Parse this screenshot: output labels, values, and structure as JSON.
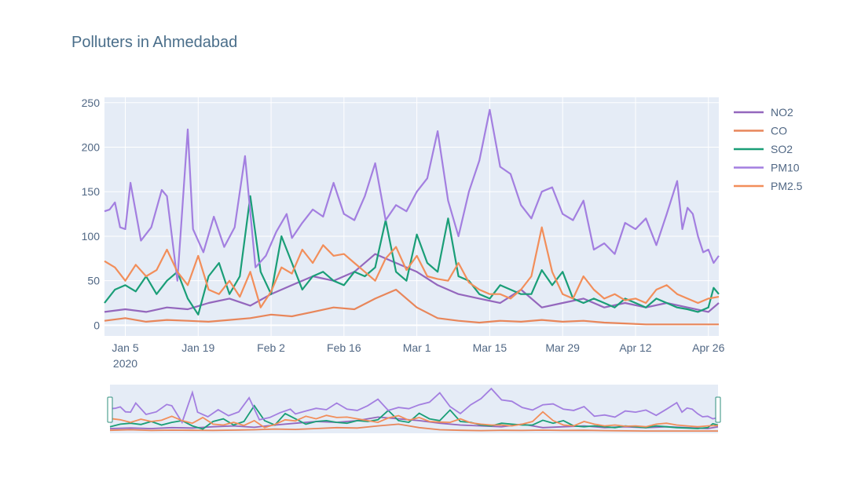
{
  "chart_data": {
    "type": "line",
    "title": "Polluters in Ahmedabad",
    "xlabel": "",
    "ylabel": "",
    "x_start": "2020-01-01",
    "x_end": "2020-04-28",
    "ylim": [
      -12,
      256
    ],
    "y_ticks": [
      "0",
      "50",
      "100",
      "150",
      "200",
      "250"
    ],
    "x_ticks": [
      {
        "label": "Jan 5",
        "sub": "2020",
        "date": "2020-01-05"
      },
      {
        "label": "Jan 19",
        "date": "2020-01-19"
      },
      {
        "label": "Feb 2",
        "date": "2020-02-02"
      },
      {
        "label": "Feb 16",
        "date": "2020-02-16"
      },
      {
        "label": "Mar 1",
        "date": "2020-03-01"
      },
      {
        "label": "Mar 15",
        "date": "2020-03-15"
      },
      {
        "label": "Mar 29",
        "date": "2020-03-29"
      },
      {
        "label": "Apr 12",
        "date": "2020-04-12"
      },
      {
        "label": "Apr 26",
        "date": "2020-04-26"
      }
    ],
    "grid": true,
    "legend_position": "right",
    "has_range_slider": true,
    "series": [
      {
        "name": "NO2",
        "color": "#9467bd",
        "points": [
          [
            "2020-01-01",
            15
          ],
          [
            "2020-01-05",
            18
          ],
          [
            "2020-01-09",
            15
          ],
          [
            "2020-01-13",
            20
          ],
          [
            "2020-01-17",
            18
          ],
          [
            "2020-01-21",
            25
          ],
          [
            "2020-01-25",
            30
          ],
          [
            "2020-01-29",
            22
          ],
          [
            "2020-02-02",
            35
          ],
          [
            "2020-02-06",
            45
          ],
          [
            "2020-02-10",
            55
          ],
          [
            "2020-02-14",
            50
          ],
          [
            "2020-02-18",
            60
          ],
          [
            "2020-02-22",
            80
          ],
          [
            "2020-02-26",
            70
          ],
          [
            "2020-03-01",
            60
          ],
          [
            "2020-03-05",
            45
          ],
          [
            "2020-03-09",
            35
          ],
          [
            "2020-03-13",
            30
          ],
          [
            "2020-03-17",
            25
          ],
          [
            "2020-03-21",
            40
          ],
          [
            "2020-03-25",
            20
          ],
          [
            "2020-03-29",
            25
          ],
          [
            "2020-04-02",
            30
          ],
          [
            "2020-04-06",
            20
          ],
          [
            "2020-04-10",
            25
          ],
          [
            "2020-04-14",
            20
          ],
          [
            "2020-04-18",
            25
          ],
          [
            "2020-04-22",
            20
          ],
          [
            "2020-04-26",
            15
          ],
          [
            "2020-04-28",
            25
          ]
        ]
      },
      {
        "name": "CO",
        "color": "#e8865a",
        "points": [
          [
            "2020-01-01",
            5
          ],
          [
            "2020-01-05",
            8
          ],
          [
            "2020-01-09",
            4
          ],
          [
            "2020-01-13",
            6
          ],
          [
            "2020-01-17",
            5
          ],
          [
            "2020-01-21",
            4
          ],
          [
            "2020-01-25",
            6
          ],
          [
            "2020-01-29",
            8
          ],
          [
            "2020-02-02",
            12
          ],
          [
            "2020-02-06",
            10
          ],
          [
            "2020-02-10",
            15
          ],
          [
            "2020-02-14",
            20
          ],
          [
            "2020-02-18",
            18
          ],
          [
            "2020-02-22",
            30
          ],
          [
            "2020-02-26",
            40
          ],
          [
            "2020-03-01",
            20
          ],
          [
            "2020-03-05",
            8
          ],
          [
            "2020-03-09",
            5
          ],
          [
            "2020-03-13",
            3
          ],
          [
            "2020-03-17",
            5
          ],
          [
            "2020-03-21",
            4
          ],
          [
            "2020-03-25",
            6
          ],
          [
            "2020-03-29",
            4
          ],
          [
            "2020-04-02",
            5
          ],
          [
            "2020-04-06",
            3
          ],
          [
            "2020-04-10",
            2
          ],
          [
            "2020-04-14",
            1
          ],
          [
            "2020-04-18",
            1
          ],
          [
            "2020-04-22",
            1
          ],
          [
            "2020-04-26",
            1
          ],
          [
            "2020-04-28",
            1
          ]
        ]
      },
      {
        "name": "SO2",
        "color": "#1a9e77",
        "points": [
          [
            "2020-01-01",
            25
          ],
          [
            "2020-01-03",
            40
          ],
          [
            "2020-01-05",
            45
          ],
          [
            "2020-01-07",
            38
          ],
          [
            "2020-01-09",
            55
          ],
          [
            "2020-01-11",
            35
          ],
          [
            "2020-01-13",
            50
          ],
          [
            "2020-01-15",
            60
          ],
          [
            "2020-01-17",
            30
          ],
          [
            "2020-01-19",
            12
          ],
          [
            "2020-01-21",
            55
          ],
          [
            "2020-01-23",
            70
          ],
          [
            "2020-01-25",
            35
          ],
          [
            "2020-01-27",
            55
          ],
          [
            "2020-01-29",
            145
          ],
          [
            "2020-01-31",
            60
          ],
          [
            "2020-02-02",
            35
          ],
          [
            "2020-02-04",
            100
          ],
          [
            "2020-02-06",
            70
          ],
          [
            "2020-02-08",
            40
          ],
          [
            "2020-02-10",
            55
          ],
          [
            "2020-02-12",
            60
          ],
          [
            "2020-02-14",
            50
          ],
          [
            "2020-02-16",
            45
          ],
          [
            "2020-02-18",
            60
          ],
          [
            "2020-02-20",
            55
          ],
          [
            "2020-02-22",
            65
          ],
          [
            "2020-02-24",
            118
          ],
          [
            "2020-02-26",
            60
          ],
          [
            "2020-02-28",
            50
          ],
          [
            "2020-03-01",
            102
          ],
          [
            "2020-03-03",
            70
          ],
          [
            "2020-03-05",
            60
          ],
          [
            "2020-03-07",
            120
          ],
          [
            "2020-03-09",
            55
          ],
          [
            "2020-03-11",
            50
          ],
          [
            "2020-03-13",
            35
          ],
          [
            "2020-03-15",
            30
          ],
          [
            "2020-03-17",
            45
          ],
          [
            "2020-03-19",
            40
          ],
          [
            "2020-03-21",
            35
          ],
          [
            "2020-03-23",
            35
          ],
          [
            "2020-03-25",
            62
          ],
          [
            "2020-03-27",
            45
          ],
          [
            "2020-03-29",
            60
          ],
          [
            "2020-03-31",
            30
          ],
          [
            "2020-04-02",
            25
          ],
          [
            "2020-04-04",
            30
          ],
          [
            "2020-04-06",
            25
          ],
          [
            "2020-04-08",
            20
          ],
          [
            "2020-04-10",
            30
          ],
          [
            "2020-04-12",
            25
          ],
          [
            "2020-04-14",
            20
          ],
          [
            "2020-04-16",
            30
          ],
          [
            "2020-04-18",
            25
          ],
          [
            "2020-04-20",
            20
          ],
          [
            "2020-04-22",
            18
          ],
          [
            "2020-04-24",
            15
          ],
          [
            "2020-04-26",
            20
          ],
          [
            "2020-04-27",
            42
          ],
          [
            "2020-04-28",
            35
          ]
        ]
      },
      {
        "name": "PM10",
        "color": "#a37fe0",
        "points": [
          [
            "2020-01-01",
            128
          ],
          [
            "2020-01-02",
            130
          ],
          [
            "2020-01-03",
            138
          ],
          [
            "2020-01-04",
            110
          ],
          [
            "2020-01-05",
            108
          ],
          [
            "2020-01-06",
            160
          ],
          [
            "2020-01-08",
            95
          ],
          [
            "2020-01-10",
            110
          ],
          [
            "2020-01-12",
            152
          ],
          [
            "2020-01-13",
            145
          ],
          [
            "2020-01-15",
            50
          ],
          [
            "2020-01-17",
            220
          ],
          [
            "2020-01-18",
            108
          ],
          [
            "2020-01-20",
            82
          ],
          [
            "2020-01-22",
            122
          ],
          [
            "2020-01-24",
            88
          ],
          [
            "2020-01-26",
            110
          ],
          [
            "2020-01-28",
            190
          ],
          [
            "2020-01-30",
            65
          ],
          [
            "2020-02-01",
            78
          ],
          [
            "2020-02-03",
            105
          ],
          [
            "2020-02-05",
            125
          ],
          [
            "2020-02-06",
            98
          ],
          [
            "2020-02-08",
            115
          ],
          [
            "2020-02-10",
            130
          ],
          [
            "2020-02-12",
            122
          ],
          [
            "2020-02-14",
            160
          ],
          [
            "2020-02-16",
            125
          ],
          [
            "2020-02-18",
            118
          ],
          [
            "2020-02-20",
            145
          ],
          [
            "2020-02-22",
            182
          ],
          [
            "2020-02-24",
            118
          ],
          [
            "2020-02-26",
            135
          ],
          [
            "2020-02-28",
            128
          ],
          [
            "2020-03-01",
            150
          ],
          [
            "2020-03-03",
            165
          ],
          [
            "2020-03-05",
            218
          ],
          [
            "2020-03-07",
            140
          ],
          [
            "2020-03-09",
            100
          ],
          [
            "2020-03-11",
            150
          ],
          [
            "2020-03-13",
            185
          ],
          [
            "2020-03-15",
            242
          ],
          [
            "2020-03-17",
            178
          ],
          [
            "2020-03-19",
            170
          ],
          [
            "2020-03-21",
            135
          ],
          [
            "2020-03-23",
            120
          ],
          [
            "2020-03-25",
            150
          ],
          [
            "2020-03-27",
            155
          ],
          [
            "2020-03-29",
            125
          ],
          [
            "2020-03-31",
            118
          ],
          [
            "2020-04-02",
            140
          ],
          [
            "2020-04-04",
            85
          ],
          [
            "2020-04-06",
            92
          ],
          [
            "2020-04-08",
            80
          ],
          [
            "2020-04-10",
            115
          ],
          [
            "2020-04-12",
            108
          ],
          [
            "2020-04-14",
            120
          ],
          [
            "2020-04-16",
            90
          ],
          [
            "2020-04-18",
            125
          ],
          [
            "2020-04-20",
            162
          ],
          [
            "2020-04-21",
            108
          ],
          [
            "2020-04-22",
            132
          ],
          [
            "2020-04-23",
            125
          ],
          [
            "2020-04-24",
            100
          ],
          [
            "2020-04-25",
            82
          ],
          [
            "2020-04-26",
            85
          ],
          [
            "2020-04-27",
            70
          ],
          [
            "2020-04-28",
            78
          ]
        ]
      },
      {
        "name": "PM2.5",
        "color": "#f28e5a",
        "points": [
          [
            "2020-01-01",
            72
          ],
          [
            "2020-01-03",
            65
          ],
          [
            "2020-01-05",
            50
          ],
          [
            "2020-01-07",
            68
          ],
          [
            "2020-01-09",
            55
          ],
          [
            "2020-01-11",
            62
          ],
          [
            "2020-01-13",
            85
          ],
          [
            "2020-01-15",
            60
          ],
          [
            "2020-01-17",
            45
          ],
          [
            "2020-01-19",
            78
          ],
          [
            "2020-01-21",
            40
          ],
          [
            "2020-01-23",
            35
          ],
          [
            "2020-01-25",
            50
          ],
          [
            "2020-01-27",
            32
          ],
          [
            "2020-01-29",
            60
          ],
          [
            "2020-01-31",
            20
          ],
          [
            "2020-02-02",
            38
          ],
          [
            "2020-02-04",
            65
          ],
          [
            "2020-02-06",
            58
          ],
          [
            "2020-02-08",
            85
          ],
          [
            "2020-02-10",
            70
          ],
          [
            "2020-02-12",
            90
          ],
          [
            "2020-02-14",
            78
          ],
          [
            "2020-02-16",
            80
          ],
          [
            "2020-02-18",
            70
          ],
          [
            "2020-02-20",
            60
          ],
          [
            "2020-02-22",
            50
          ],
          [
            "2020-02-24",
            75
          ],
          [
            "2020-02-26",
            88
          ],
          [
            "2020-02-28",
            62
          ],
          [
            "2020-03-01",
            78
          ],
          [
            "2020-03-03",
            55
          ],
          [
            "2020-03-05",
            52
          ],
          [
            "2020-03-07",
            50
          ],
          [
            "2020-03-09",
            70
          ],
          [
            "2020-03-11",
            48
          ],
          [
            "2020-03-13",
            40
          ],
          [
            "2020-03-15",
            35
          ],
          [
            "2020-03-17",
            35
          ],
          [
            "2020-03-19",
            30
          ],
          [
            "2020-03-21",
            40
          ],
          [
            "2020-03-23",
            55
          ],
          [
            "2020-03-25",
            110
          ],
          [
            "2020-03-27",
            60
          ],
          [
            "2020-03-29",
            35
          ],
          [
            "2020-03-31",
            30
          ],
          [
            "2020-04-02",
            55
          ],
          [
            "2020-04-04",
            40
          ],
          [
            "2020-04-06",
            30
          ],
          [
            "2020-04-08",
            35
          ],
          [
            "2020-04-10",
            28
          ],
          [
            "2020-04-12",
            30
          ],
          [
            "2020-04-14",
            25
          ],
          [
            "2020-04-16",
            40
          ],
          [
            "2020-04-18",
            45
          ],
          [
            "2020-04-20",
            35
          ],
          [
            "2020-04-22",
            30
          ],
          [
            "2020-04-24",
            25
          ],
          [
            "2020-04-26",
            30
          ],
          [
            "2020-04-28",
            32
          ]
        ]
      }
    ]
  }
}
